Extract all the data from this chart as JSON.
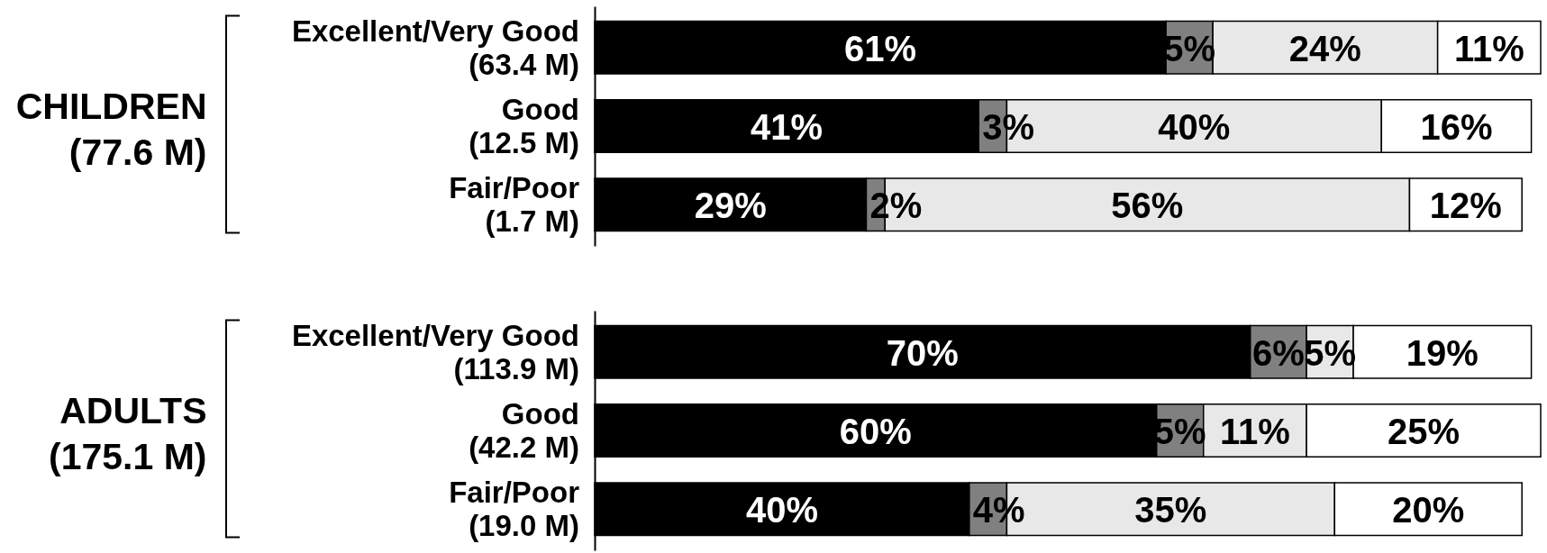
{
  "chart_data": [
    {
      "type": "bar",
      "orientation": "horizontal",
      "stacked": true,
      "tick_labels": "y",
      "ylabel": "CHILDREN\n(77.6 M)",
      "categories": [
        "Excellent/Very Good\n(63.4 M)",
        "Good\n(12.5 M)",
        "Fair/Poor\n(1.7 M)"
      ],
      "series": [
        {
          "color": "#000000",
          "values": [
            61,
            41,
            29
          ],
          "value_labels": [
            "61%",
            "41%",
            "29%"
          ]
        },
        {
          "color": "#808080",
          "values": [
            5,
            3,
            2
          ],
          "value_labels": [
            "5%",
            "3%",
            "2%"
          ]
        },
        {
          "color": "#e8e8e8",
          "values": [
            24,
            40,
            56
          ],
          "value_labels": [
            "24%",
            "40%",
            "56%"
          ]
        },
        {
          "color": "#ffffff",
          "values": [
            11,
            16,
            12
          ],
          "value_labels": [
            "11%",
            "16%",
            "12%"
          ]
        }
      ]
    },
    {
      "type": "bar",
      "orientation": "horizontal",
      "stacked": true,
      "tick_labels": "y",
      "ylabel": "ADULTS\n(175.1 M)",
      "categories": [
        "Excellent/Very Good\n(113.9 M)",
        "Good\n(42.2 M)",
        "Fair/Poor\n(19.0 M)"
      ],
      "series": [
        {
          "color": "#000000",
          "values": [
            70,
            60,
            40
          ],
          "value_labels": [
            "70%",
            "60%",
            "40%"
          ]
        },
        {
          "color": "#808080",
          "values": [
            6,
            5,
            4
          ],
          "value_labels": [
            "6%",
            "5%",
            "4%"
          ]
        },
        {
          "color": "#e8e8e8",
          "values": [
            5,
            11,
            35
          ],
          "value_labels": [
            "5%",
            "11%",
            "35%"
          ]
        },
        {
          "color": "#ffffff",
          "values": [
            19,
            25,
            20
          ],
          "value_labels": [
            "19%",
            "25%",
            "20%"
          ]
        }
      ]
    }
  ]
}
